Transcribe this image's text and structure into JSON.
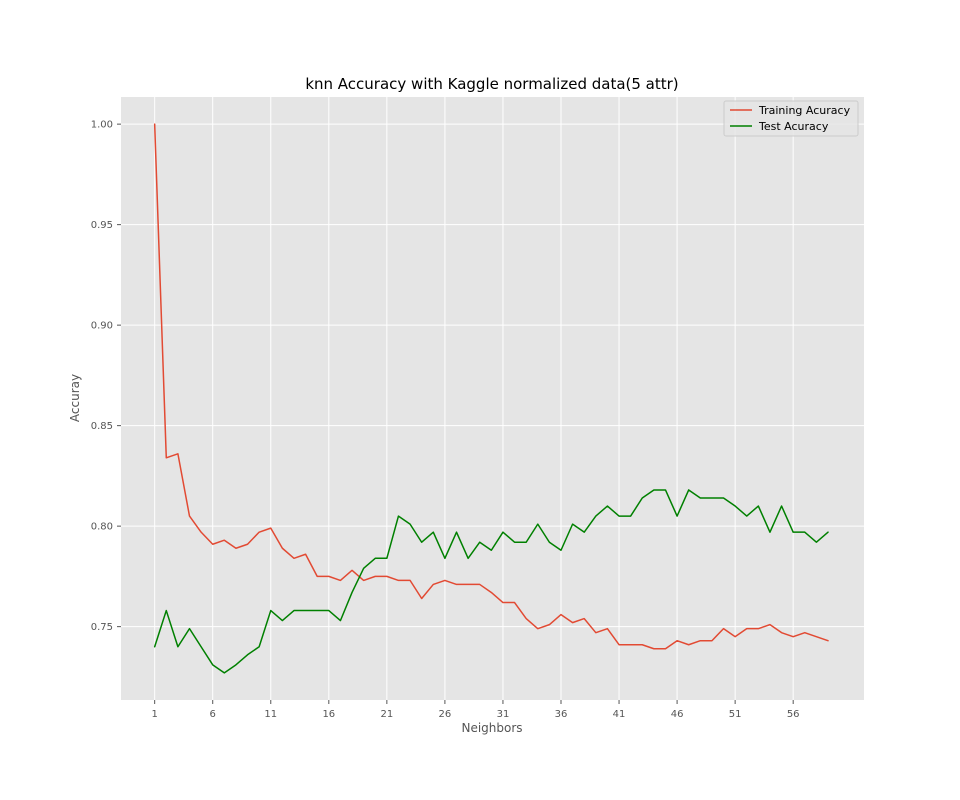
{
  "chart_data": {
    "type": "line",
    "title": "knn Accuracy with Kaggle normalized data(5 attr)",
    "xlabel": "Neighbors",
    "ylabel": "Accuray",
    "xlim": [
      -1.9,
      62.1
    ],
    "ylim": [
      0.7135,
      1.0135
    ],
    "xticks": [
      1,
      6,
      11,
      16,
      21,
      26,
      31,
      36,
      41,
      46,
      51,
      56
    ],
    "yticks": [
      0.75,
      0.8,
      0.85,
      0.9,
      0.95,
      1.0
    ],
    "ytick_labels": [
      "0.75",
      "0.80",
      "0.85",
      "0.90",
      "0.95",
      "1.00"
    ],
    "grid": true,
    "legend_position": "top-right",
    "x": [
      1,
      2,
      3,
      4,
      5,
      6,
      7,
      8,
      9,
      10,
      11,
      12,
      13,
      14,
      15,
      16,
      17,
      18,
      19,
      20,
      21,
      22,
      23,
      24,
      25,
      26,
      27,
      28,
      29,
      30,
      31,
      32,
      33,
      34,
      35,
      36,
      37,
      38,
      39,
      40,
      41,
      42,
      43,
      44,
      45,
      46,
      47,
      48,
      49,
      50,
      51,
      52,
      53,
      54,
      55,
      56,
      57,
      58,
      59
    ],
    "series": [
      {
        "name": "Training Acuracy",
        "color": "#e24a33",
        "values": [
          1.0,
          0.834,
          0.836,
          0.805,
          0.797,
          0.791,
          0.793,
          0.789,
          0.791,
          0.797,
          0.799,
          0.789,
          0.784,
          0.786,
          0.775,
          0.775,
          0.773,
          0.778,
          0.773,
          0.775,
          0.775,
          0.773,
          0.773,
          0.764,
          0.771,
          0.773,
          0.771,
          0.771,
          0.771,
          0.767,
          0.762,
          0.762,
          0.754,
          0.749,
          0.751,
          0.756,
          0.752,
          0.754,
          0.747,
          0.749,
          0.741,
          0.741,
          0.741,
          0.739,
          0.739,
          0.743,
          0.741,
          0.743,
          0.743,
          0.749,
          0.745,
          0.749,
          0.749,
          0.751,
          0.747,
          0.745,
          0.747,
          0.745,
          0.743
        ]
      },
      {
        "name": "Test Acuracy",
        "color": "#008000",
        "values": [
          0.74,
          0.758,
          0.74,
          0.749,
          0.74,
          0.731,
          0.727,
          0.731,
          0.736,
          0.74,
          0.758,
          0.753,
          0.758,
          0.758,
          0.758,
          0.758,
          0.753,
          0.767,
          0.779,
          0.784,
          0.784,
          0.805,
          0.801,
          0.792,
          0.797,
          0.784,
          0.797,
          0.784,
          0.792,
          0.788,
          0.797,
          0.792,
          0.792,
          0.801,
          0.792,
          0.788,
          0.801,
          0.797,
          0.805,
          0.81,
          0.805,
          0.805,
          0.814,
          0.818,
          0.818,
          0.805,
          0.818,
          0.814,
          0.814,
          0.814,
          0.81,
          0.805,
          0.81,
          0.797,
          0.81,
          0.797,
          0.797,
          0.792,
          0.797
        ]
      }
    ]
  },
  "style": {
    "plot_background": "#e5e5e5",
    "grid_color": "#ffffff",
    "tick_color": "#555555"
  }
}
